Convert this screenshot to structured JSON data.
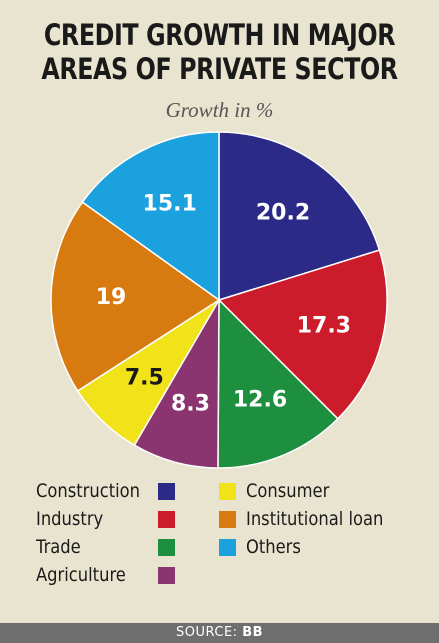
{
  "title_line1": "CREDIT GROWTH IN MAJOR",
  "title_line2": "AREAS OF PRIVATE SECTOR",
  "subtitle": "Growth in %",
  "source_label": "SOURCE:",
  "source_value": "BB",
  "chart_data": {
    "type": "pie",
    "title": "CREDIT GROWTH IN MAJOR AREAS OF PRIVATE SECTOR",
    "subtitle": "Growth in %",
    "slices": [
      {
        "name": "Construction",
        "value": 20.2,
        "label": "20.2",
        "color": "#2b2a86"
      },
      {
        "name": "Industry",
        "value": 17.3,
        "label": "17.3",
        "color": "#cc1b2b"
      },
      {
        "name": "Trade",
        "value": 12.6,
        "label": "12.6",
        "color": "#1d8f3f"
      },
      {
        "name": "Agriculture",
        "value": 8.3,
        "label": "8.3",
        "color": "#8a356f"
      },
      {
        "name": "Consumer",
        "value": 7.5,
        "label": "7.5",
        "color": "#f2e21a"
      },
      {
        "name": "Institutional loan",
        "value": 19,
        "label": "19",
        "color": "#d77a10"
      },
      {
        "name": "Others",
        "value": 15.1,
        "label": "15.1",
        "color": "#1ba1dd"
      }
    ],
    "legend_position": "bottom"
  }
}
